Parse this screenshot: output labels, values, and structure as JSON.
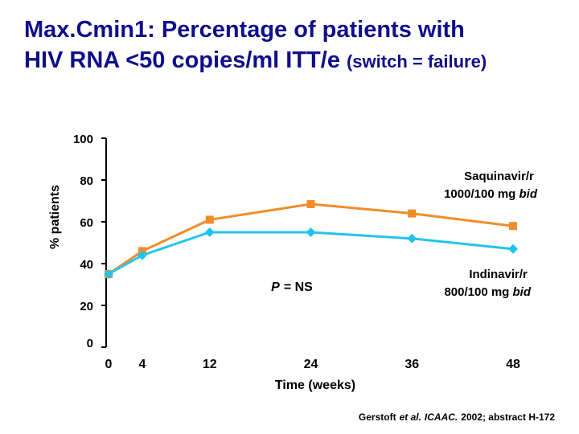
{
  "chart_data": {
    "type": "line",
    "title": [
      "Max.Cmin1: Percentage of patients with",
      "HIV RNA <50 copies/ml ITT/e",
      "(switch = failure)"
    ],
    "x_label": "Time (weeks)",
    "y_label": "% patients",
    "x": [
      0,
      4,
      12,
      24,
      36,
      48
    ],
    "xticks": [
      0,
      4,
      12,
      24,
      36,
      48
    ],
    "xlim": [
      0,
      48
    ],
    "ylim": [
      0,
      100
    ],
    "yticks": [
      0,
      20,
      40,
      60,
      80,
      100
    ],
    "series": [
      {
        "name": "Saquinavir/r 1000/100 mg bid",
        "color": "#f28c28",
        "marker": "square",
        "values": [
          35,
          46,
          61,
          68.5,
          64,
          58
        ]
      },
      {
        "name": "Indinavir/r 800/100 mg bid",
        "color": "#22c4ee",
        "marker": "diamond",
        "values": [
          35,
          44,
          55,
          55,
          52,
          47
        ]
      }
    ],
    "annotation": [
      "P",
      "= NS"
    ],
    "footnote": [
      "Gerstoft",
      "et al.",
      "ICAAC.",
      "2002; abstract H-172"
    ]
  }
}
